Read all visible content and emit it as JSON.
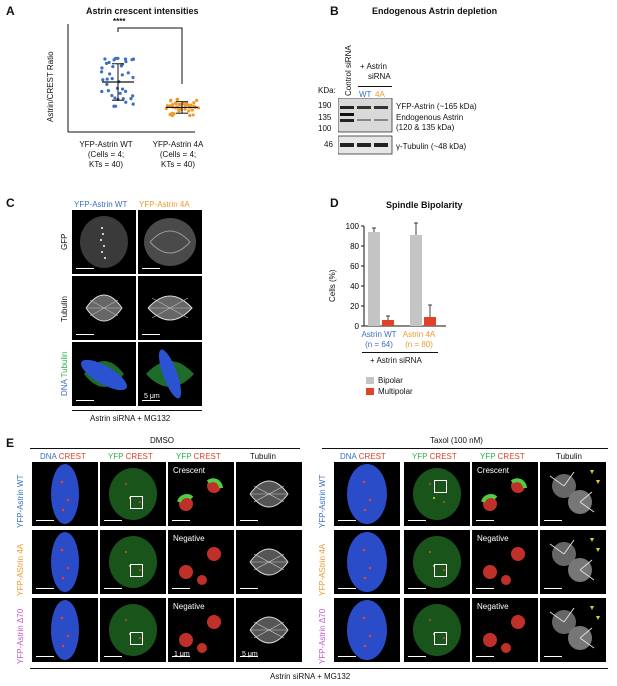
{
  "panelA": {
    "label": "A",
    "title": "Astrin crescent intensities",
    "ylabel": "Astrin/CREST  Ratio",
    "signif": "****",
    "groups": [
      {
        "l1": "YFP-Astrin WT",
        "l2": "(Cells = 4;",
        "l3": "KTs = 40)"
      },
      {
        "l1": "YFP-Astrin 4A",
        "l2": "(Cells = 4;",
        "l3": "KTs = 40)"
      }
    ],
    "colors": {
      "wt": "#3a6fc4",
      "mut": "#f09a2a"
    }
  },
  "panelB": {
    "label": "B",
    "title": "Endogenous Astrin depletion",
    "lane1": "Control siRNA",
    "lane2a": "+ Astrin",
    "lane2b": "siRNA",
    "kda": "KDa:",
    "wt": "WT",
    "mut": "4A",
    "markers": [
      "190",
      "135",
      "100",
      "46"
    ],
    "bands": [
      "YFP-Astrin (~165 kDa)",
      "Endogenous Astrin",
      "(120 & 135 kDa)",
      "γ-Tubulin (~48 kDa)"
    ]
  },
  "panelC": {
    "label": "C",
    "col1": "YFP-Astrin WT",
    "col2": "YFP-Astrin 4A",
    "rows": [
      "GFP",
      "Tubulin"
    ],
    "dna": "DNA",
    "tubulin": "Tubulin",
    "scale": "5 μm",
    "footer": "Astrin siRNA + MG132"
  },
  "panelD": {
    "label": "D",
    "title": "Spindle Bipolarity",
    "ylabel": "Cells (%)",
    "yticks": [
      "0",
      "20",
      "40",
      "60",
      "80",
      "100"
    ],
    "groups": [
      {
        "l1": "Astrin WT",
        "l2": "(n = 64)",
        "color": "#3a6fc4"
      },
      {
        "l1": "Astrin 4A",
        "l2": "(n = 80)",
        "color": "#f09a2a"
      }
    ],
    "sirna": "+ Astrin siRNA",
    "legend": [
      "Bipolar",
      "Multipolar"
    ],
    "colors": {
      "bipolar": "#c4c4c4",
      "multipolar": "#e0412a"
    }
  },
  "chart_data": [
    {
      "type": "bar",
      "title": "Spindle Bipolarity",
      "ylabel": "Cells (%)",
      "ylim": [
        0,
        100
      ],
      "categories": [
        "Astrin WT (n = 64)",
        "Astrin 4A (n = 80)"
      ],
      "series": [
        {
          "name": "Bipolar",
          "values": [
            94,
            91
          ],
          "errors": [
            4,
            12
          ]
        },
        {
          "name": "Multipolar",
          "values": [
            6,
            9
          ],
          "errors": [
            4,
            12
          ]
        }
      ]
    },
    {
      "type": "scatter",
      "title": "Astrin crescent intensities",
      "ylabel": "Astrin/CREST  Ratio",
      "categories": [
        "YFP-Astrin WT",
        "YFP-Astrin 4A"
      ],
      "summary": [
        {
          "mean": 1.0,
          "sd": 0.38
        },
        {
          "mean": 0.47,
          "sd": 0.12
        }
      ]
    }
  ],
  "panelE": {
    "label": "E",
    "dmso": "DMSO",
    "taxol": "Taxol (100 nM)",
    "dnaA": "DNA",
    "crestA": "CREST",
    "yfp": "YFP",
    "tubulin": "Tubulin",
    "rows": [
      {
        "a": "YFP-Astrin",
        "b": "WT",
        "color": "#3a6fc4",
        "tag": "Crescent"
      },
      {
        "a": "YFP-AStrin",
        "b": "4A",
        "color": "#f09a2a",
        "tag": "Negative"
      },
      {
        "a": "YFP-Astrin",
        "b": "Δ70",
        "color": "#c05ac8",
        "tag": "Negative"
      }
    ],
    "scale1": "1 μm",
    "scale2": "5 μm",
    "footer": "Astrin siRNA + MG132"
  }
}
